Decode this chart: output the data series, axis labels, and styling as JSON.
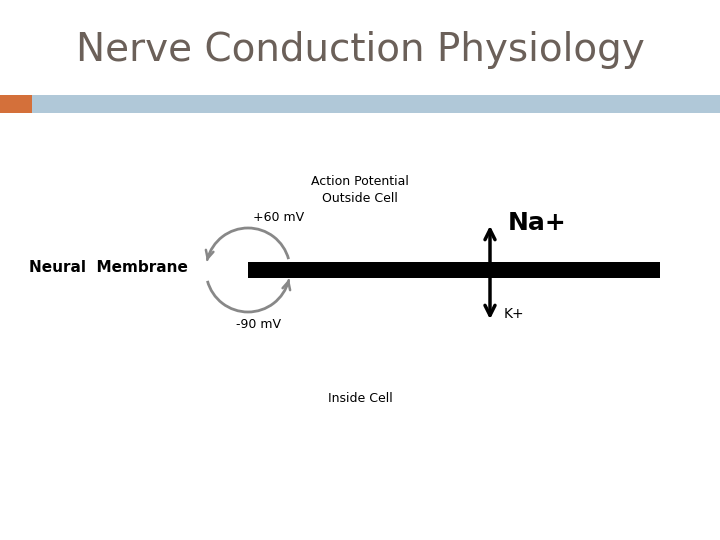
{
  "title": "Nerve Conduction Physiology",
  "title_color": "#6b6059",
  "title_fontsize": 28,
  "bg_color": "#ffffff",
  "header_bar_color": "#b0c8d8",
  "header_bar_left_color": "#d4703a",
  "action_potential_label": "Action Potential\nOutside Cell",
  "neural_membrane_label": "Neural  Membrane",
  "plus60_label": "+60 mV",
  "minus90_label": "-90 mV",
  "na_label": "Na+",
  "k_label": "K+",
  "inside_cell_label": "Inside Cell",
  "membrane_color": "#000000",
  "arrow_color": "#888888",
  "black": "#000000"
}
